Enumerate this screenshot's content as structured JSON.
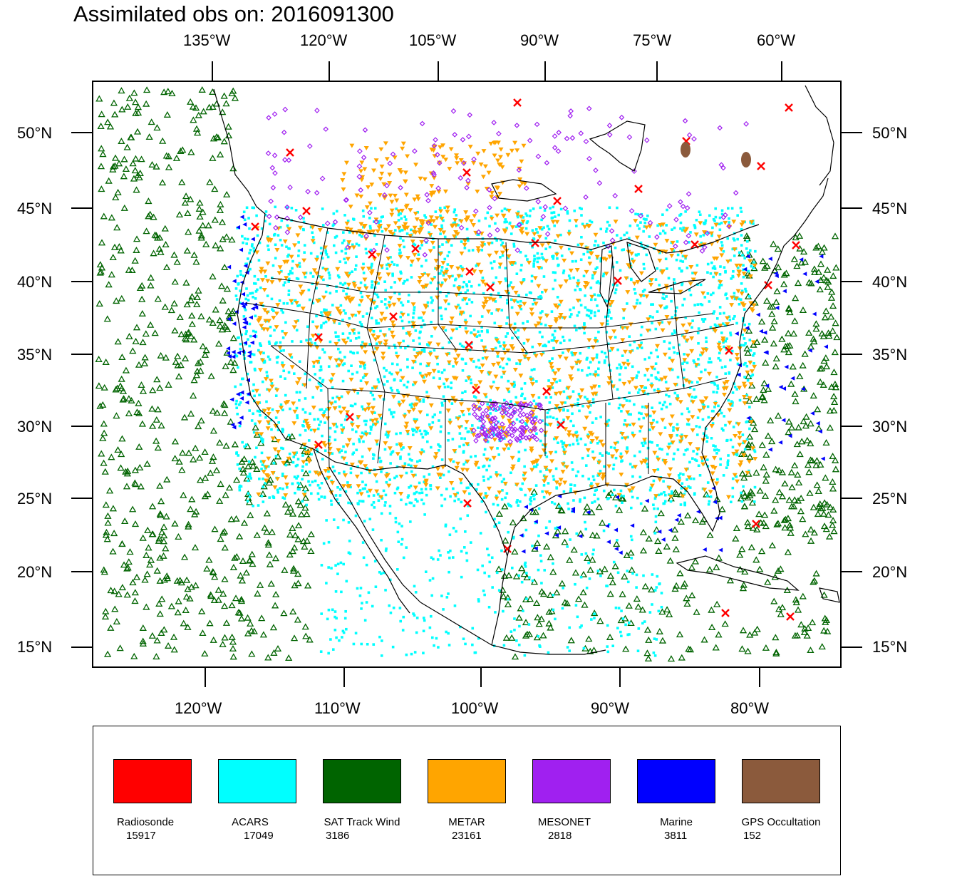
{
  "title": "Assimilated obs on: 2016091300",
  "top_axis_labels": [
    "135°W",
    "120°W",
    "105°W",
    "90°W",
    "75°W",
    "60°W"
  ],
  "bottom_axis_labels": [
    "120°W",
    "110°W",
    "100°W",
    "90°W",
    "80°W"
  ],
  "lat_labels": [
    "50°N",
    "45°N",
    "40°N",
    "35°N",
    "30°N",
    "25°N",
    "20°N",
    "15°N"
  ],
  "legend": [
    {
      "name": "Radiosonde",
      "count": "15917",
      "color": "#ff0000",
      "marker": "x"
    },
    {
      "name": "ACARS",
      "count": "17049",
      "color": "#00ffff",
      "marker": "square"
    },
    {
      "name": "SAT Track Wind",
      "count": "3186",
      "color": "#006400",
      "marker": "triangle"
    },
    {
      "name": "METAR",
      "count": "23161",
      "color": "#ffa500",
      "marker": "triangle-down"
    },
    {
      "name": "MESONET",
      "count": "2818",
      "color": "#a020f0",
      "marker": "diamond"
    },
    {
      "name": "Marine",
      "count": "3811",
      "color": "#0000ff",
      "marker": "arrow"
    },
    {
      "name": "GPS Occultation",
      "count": "152",
      "color": "#8b5a3c",
      "marker": "blob"
    }
  ]
}
